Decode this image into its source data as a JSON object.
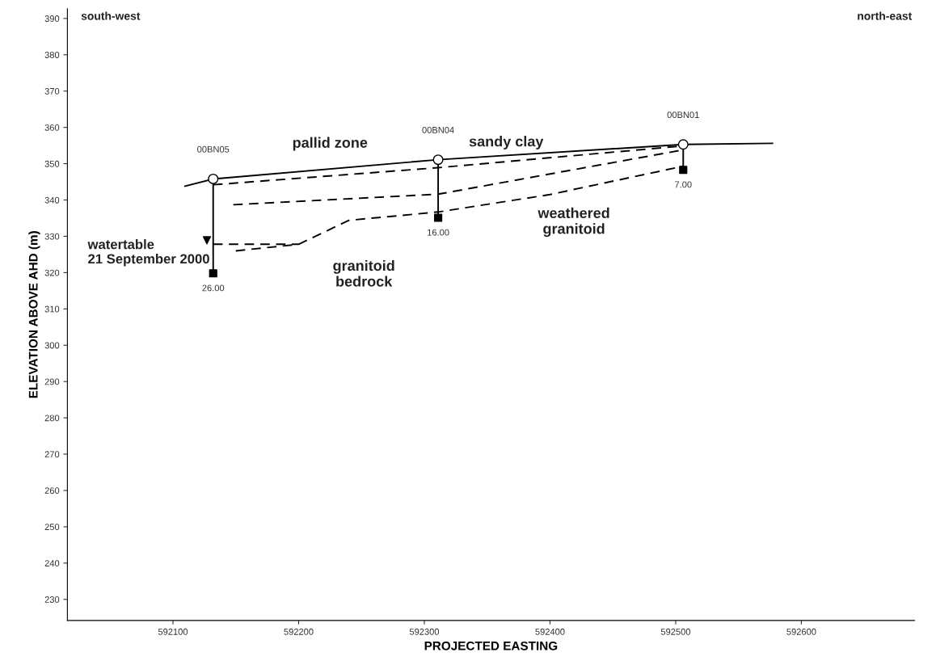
{
  "chart_data": {
    "type": "line",
    "xlabel": "PROJECTED EASTING",
    "ylabel": "ELEVATION ABOVE AHD (m)",
    "xlim": [
      592016,
      592690
    ],
    "ylim": [
      224.2,
      392.7
    ],
    "xticks": [
      592100,
      592200,
      592300,
      592400,
      592500,
      592600
    ],
    "yticks": [
      230,
      240,
      250,
      260,
      270,
      280,
      290,
      300,
      310,
      320,
      330,
      340,
      350,
      360,
      370,
      380,
      390
    ],
    "grid": false,
    "legend": false,
    "marker": "none",
    "line_style": "solid",
    "series": [
      {
        "color": "#000000",
        "x": [
          592109.6,
          592132,
          592311,
          592506,
          592577
        ],
        "values": [
          343.8,
          345.8,
          351.1,
          355.3,
          355.6
        ]
      },
      {
        "color": "#000000",
        "x": [
          592132,
          592311,
          592506
        ],
        "values": [
          344.2,
          348.9,
          354.9
        ],
        "line_style": "dashed"
      },
      {
        "color": "#000000",
        "x": [
          592148,
          592311,
          592506
        ],
        "values": [
          338.7,
          341.6,
          353.8
        ],
        "line_style": "dashed"
      },
      {
        "color": "#000000",
        "x": [
          592150,
          592200,
          592240,
          592311,
          592400,
          592506
        ],
        "values": [
          326.0,
          327.8,
          334.4,
          336.7,
          341.5,
          349.3
        ],
        "line_style": "dashed"
      },
      {
        "color": "#000000",
        "x": [
          592132,
          592200
        ],
        "values": [
          327.8,
          327.8
        ],
        "line_style": "dashed"
      },
      {
        "color": "#000000",
        "x": [
          592132,
          592132
        ],
        "values": [
          345.8,
          319.8
        ]
      },
      {
        "color": "#000000",
        "x": [
          592311,
          592311
        ],
        "values": [
          351.1,
          335.1
        ]
      },
      {
        "color": "#000000",
        "x": [
          592506,
          592506
        ],
        "values": [
          355.3,
          348.3
        ]
      },
      {
        "type": "scatter",
        "color": "#000000",
        "x": [
          592132,
          592311,
          592506
        ],
        "values": [
          345.8,
          351.1,
          355.3
        ],
        "marker": "circle"
      },
      {
        "type": "scatter",
        "color": "#000000",
        "x": [
          592132,
          592311,
          592506
        ],
        "values": [
          319.8,
          335.1,
          348.3
        ],
        "marker": "square"
      },
      {
        "type": "scatter",
        "color": "#000000",
        "x": [
          592127
        ],
        "values": [
          328.9
        ],
        "marker": "triangle"
      }
    ],
    "annotations": [
      "south-west",
      "north-east",
      "pallid zone",
      "sandy clay",
      "weathered\ngranitoid",
      "granitoid\nbedrock",
      "watertable\n21 September 2000",
      {
        "text": "00BN05",
        "x": 592132,
        "y": 345.8
      },
      {
        "text": "00BN04",
        "x": 592311,
        "y": 351.1
      },
      {
        "text": "00BN01",
        "x": 592506,
        "y": 355.3
      },
      {
        "text": "26.00",
        "x": 592132,
        "y": 319.8
      },
      {
        "text": "16.00",
        "x": 592311,
        "y": 335.1
      },
      {
        "text": "7.00",
        "x": 592506,
        "y": 348.3
      }
    ]
  }
}
